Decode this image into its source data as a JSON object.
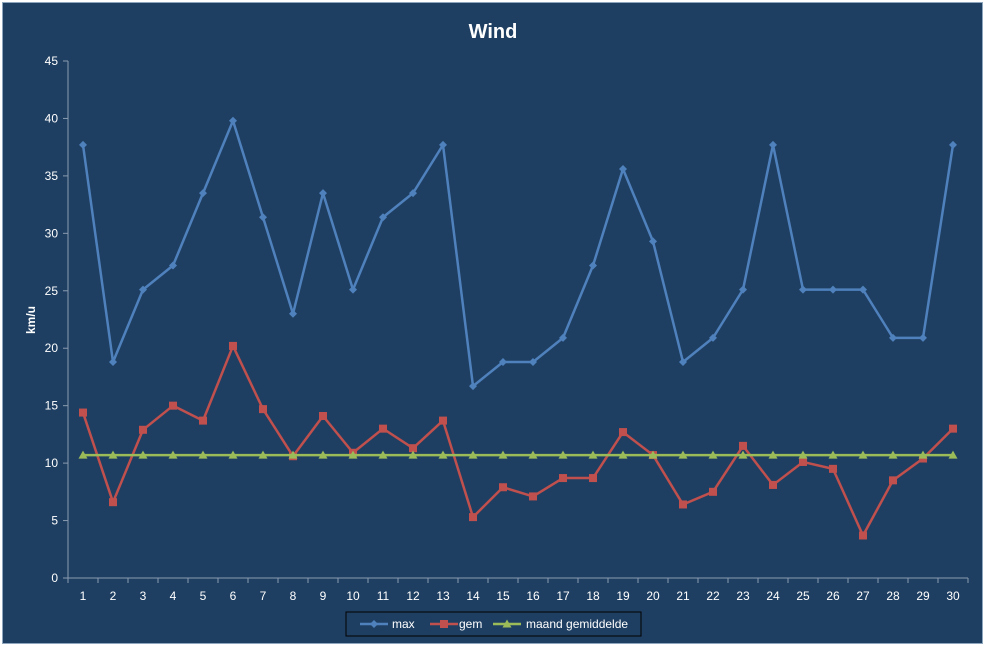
{
  "chart_data": {
    "type": "line",
    "title": "Wind",
    "xlabel": "",
    "ylabel": "km/u",
    "ylim": [
      0,
      45
    ],
    "yticks": [
      0,
      5,
      10,
      15,
      20,
      25,
      30,
      35,
      40,
      45
    ],
    "x": [
      1,
      2,
      3,
      4,
      5,
      6,
      7,
      8,
      9,
      10,
      11,
      12,
      13,
      14,
      15,
      16,
      17,
      18,
      19,
      20,
      21,
      22,
      23,
      24,
      25,
      26,
      27,
      28,
      29,
      30
    ],
    "grid": false,
    "legend_position": "bottom",
    "background": "#1f3f62",
    "series": [
      {
        "name": "max",
        "color": "#4f81bd",
        "marker": "diamond",
        "values": [
          37.7,
          18.8,
          25.1,
          27.2,
          33.5,
          39.8,
          31.4,
          23.0,
          33.5,
          25.1,
          31.4,
          33.5,
          37.7,
          16.7,
          18.8,
          18.8,
          20.9,
          27.2,
          35.6,
          29.3,
          18.8,
          20.9,
          25.1,
          37.7,
          25.1,
          25.1,
          25.1,
          20.9,
          20.9,
          37.7
        ]
      },
      {
        "name": "gem",
        "color": "#c0504d",
        "marker": "square",
        "values": [
          14.4,
          6.6,
          12.9,
          15.0,
          13.7,
          20.2,
          14.7,
          10.6,
          14.1,
          10.9,
          13.0,
          11.3,
          13.7,
          5.3,
          7.9,
          7.1,
          8.7,
          8.7,
          12.7,
          10.7,
          6.4,
          7.5,
          11.5,
          8.1,
          10.1,
          9.5,
          3.7,
          8.5,
          10.4,
          13.0
        ]
      },
      {
        "name": "maand gemiddelde",
        "color": "#9bbb59",
        "marker": "triangle",
        "values": [
          10.7,
          10.7,
          10.7,
          10.7,
          10.7,
          10.7,
          10.7,
          10.7,
          10.7,
          10.7,
          10.7,
          10.7,
          10.7,
          10.7,
          10.7,
          10.7,
          10.7,
          10.7,
          10.7,
          10.7,
          10.7,
          10.7,
          10.7,
          10.7,
          10.7,
          10.7,
          10.7,
          10.7,
          10.7,
          10.7
        ]
      }
    ]
  }
}
